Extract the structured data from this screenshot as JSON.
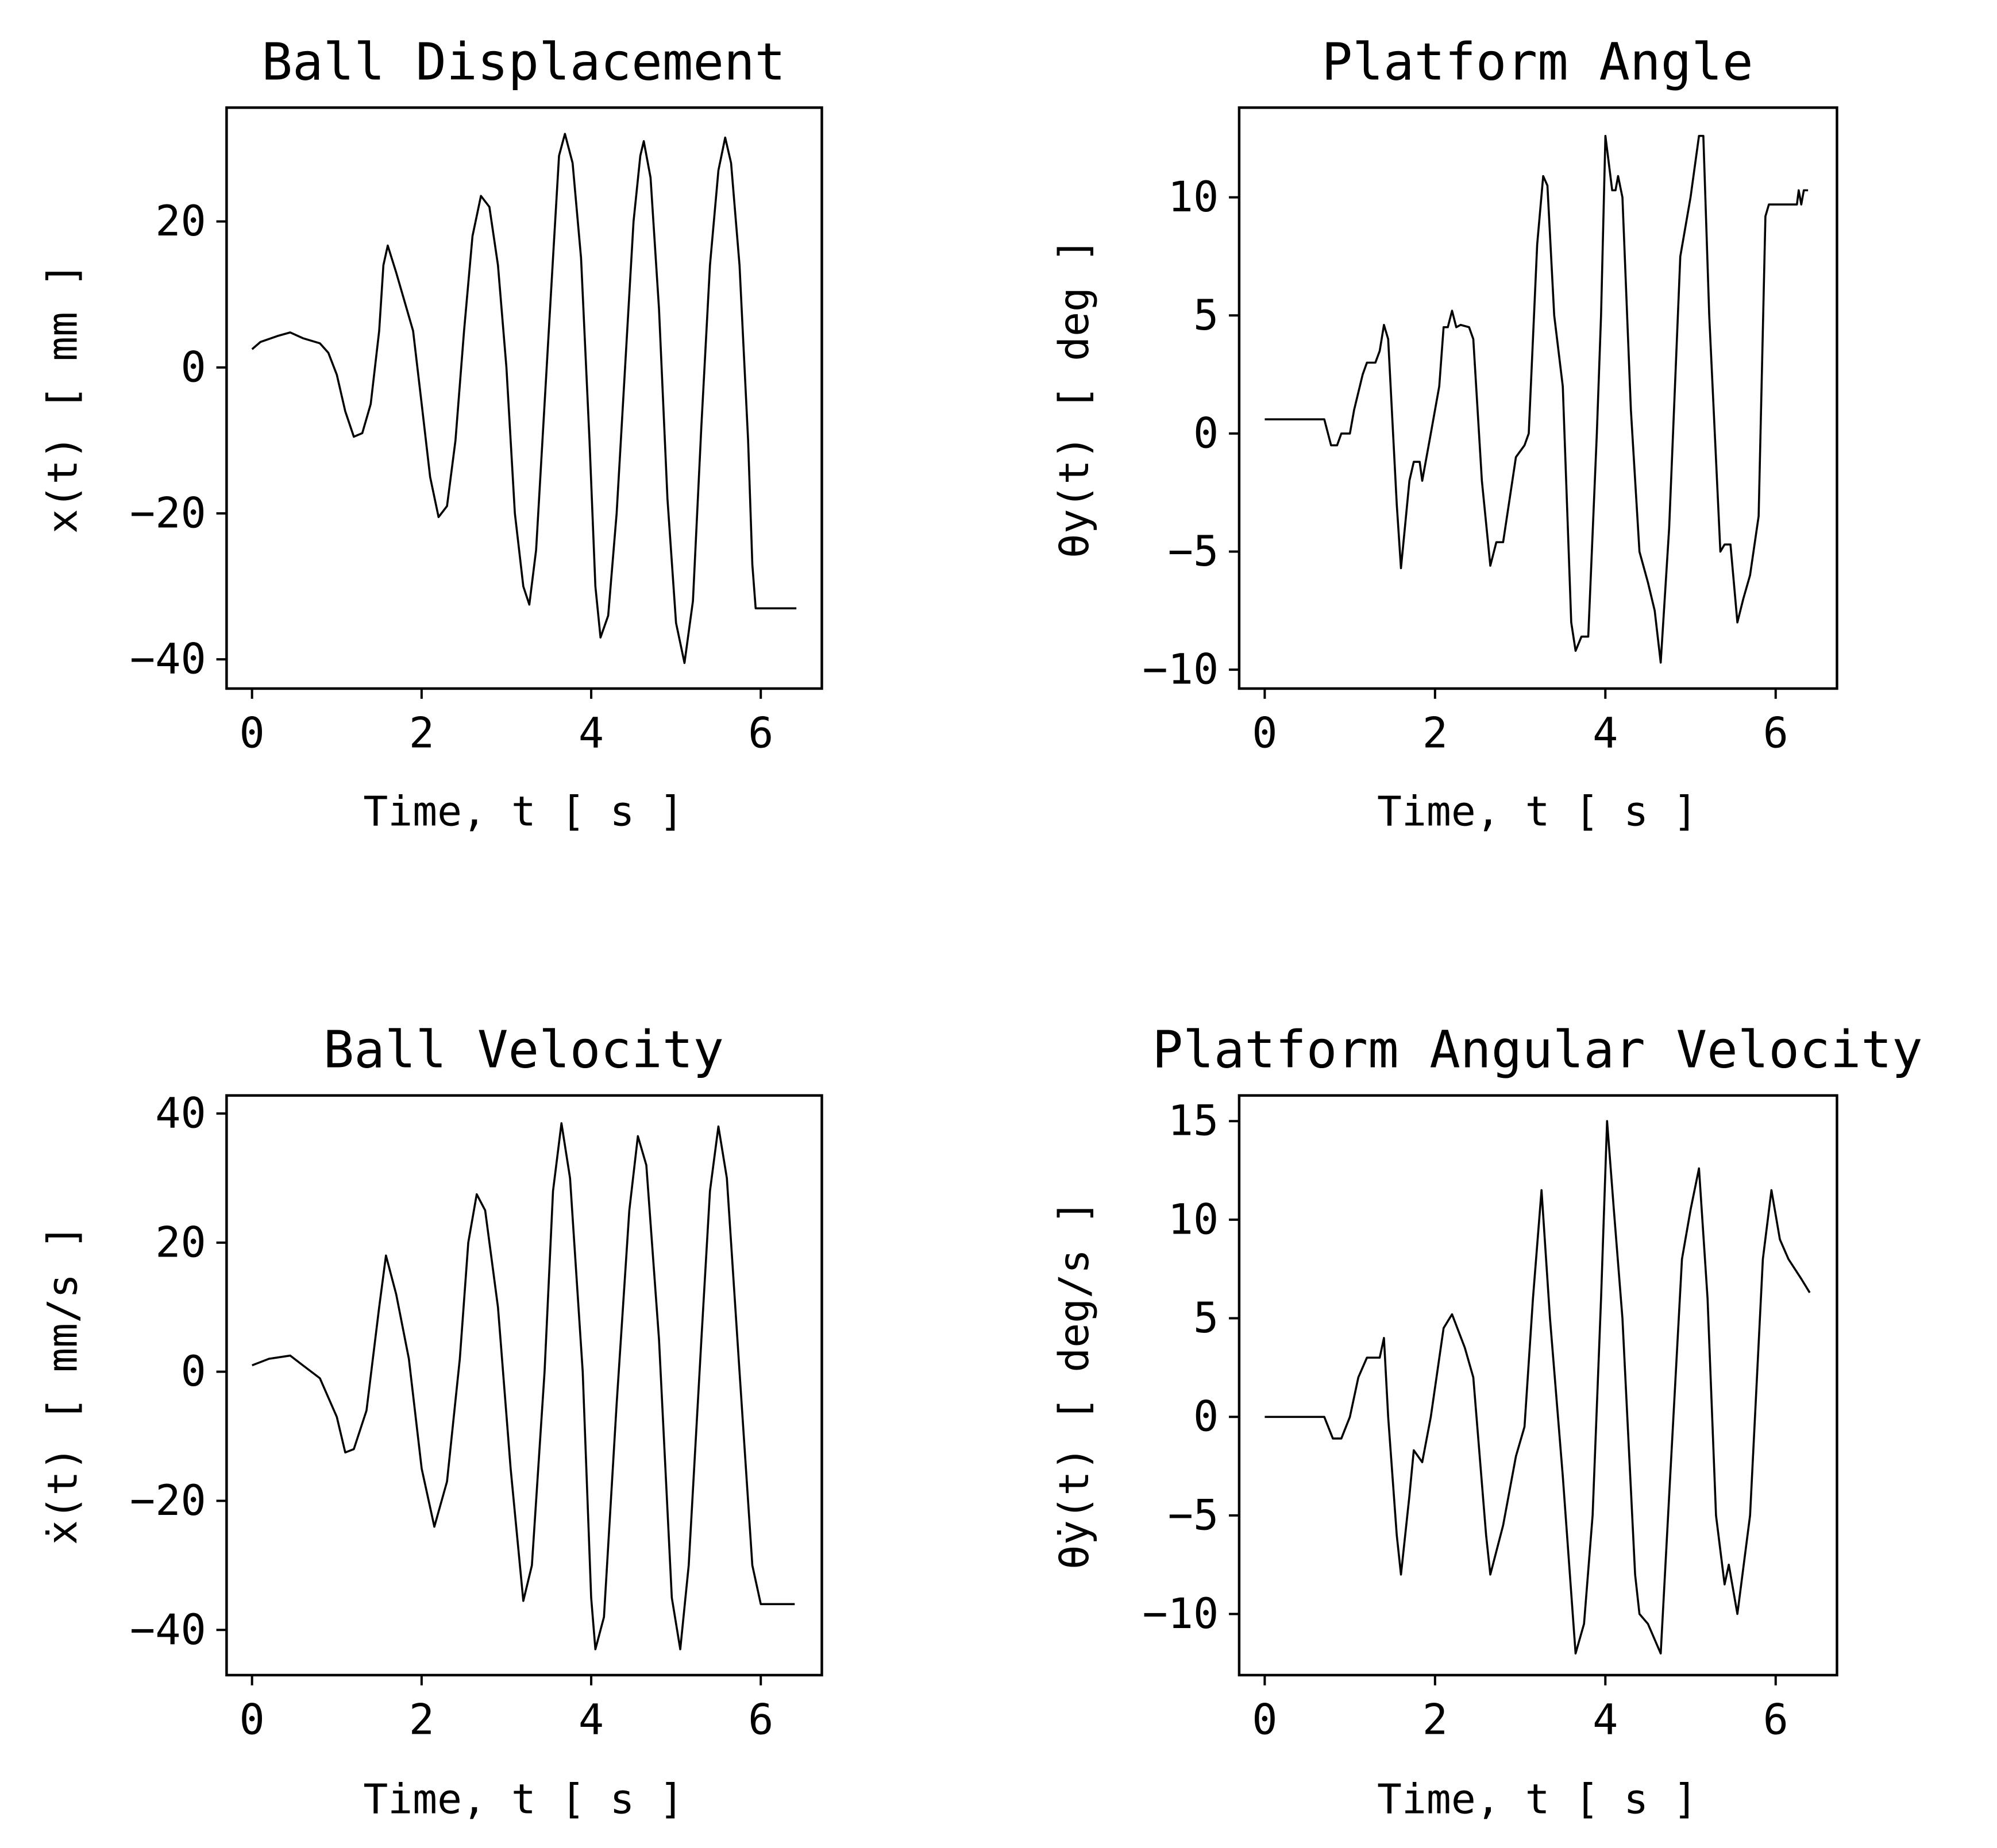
{
  "chart_data": [
    {
      "type": "line",
      "title": "Ball Displacement",
      "xlabel": "Time, t [ s ]",
      "ylabel": "x(t) [ mm ]",
      "xlim": [
        -0.3,
        6.72
      ],
      "ylim": [
        -44.0,
        35.6
      ],
      "xticks": [
        0,
        2,
        4,
        6
      ],
      "yticks": [
        -40,
        -20,
        0,
        20
      ],
      "grid": false,
      "color": "#000000",
      "x": [
        0,
        0.1,
        0.3,
        0.45,
        0.6,
        0.8,
        0.9,
        1.0,
        1.1,
        1.2,
        1.3,
        1.4,
        1.5,
        1.55,
        1.6,
        1.7,
        1.8,
        1.9,
        2.0,
        2.1,
        2.2,
        2.3,
        2.4,
        2.5,
        2.6,
        2.7,
        2.8,
        2.9,
        3.0,
        3.1,
        3.2,
        3.27,
        3.35,
        3.45,
        3.55,
        3.62,
        3.69,
        3.78,
        3.88,
        3.98,
        4.05,
        4.11,
        4.2,
        4.3,
        4.4,
        4.5,
        4.58,
        4.62,
        4.7,
        4.8,
        4.9,
        5.0,
        5.1,
        5.2,
        5.3,
        5.4,
        5.5,
        5.58,
        5.65,
        5.75,
        5.85,
        5.9,
        5.94,
        6.42
      ],
      "y": [
        2.5,
        3.5,
        4.3,
        4.8,
        4,
        3.3,
        2,
        -1,
        -6,
        -9.5,
        -9,
        -5,
        5,
        14,
        16.7,
        13,
        9,
        5,
        -5,
        -15,
        -20.5,
        -19,
        -10,
        5,
        18,
        23.5,
        22,
        14,
        0,
        -20,
        -30,
        -32.5,
        -25,
        -5,
        15,
        29,
        32,
        28,
        15,
        -10,
        -30,
        -37,
        -34,
        -20,
        0,
        20,
        29,
        31,
        26,
        8,
        -18,
        -35,
        -40.5,
        -32,
        -8,
        14,
        27,
        31.5,
        28,
        14,
        -10,
        -27,
        -33,
        -33
      ]
    },
    {
      "type": "line",
      "title": "Platform Angle",
      "xlabel": "Time, t [ s ]",
      "ylabel": "θy(t) [ deg ]",
      "xlim": [
        -0.3,
        6.72
      ],
      "ylim": [
        -10.8,
        13.8
      ],
      "xticks": [
        0,
        2,
        4,
        6
      ],
      "yticks": [
        -10,
        -5,
        0,
        5,
        10
      ],
      "grid": false,
      "color": "#000000",
      "x": [
        0,
        0.7,
        0.78,
        0.85,
        0.9,
        1.0,
        1.05,
        1.15,
        1.2,
        1.3,
        1.35,
        1.4,
        1.45,
        1.55,
        1.6,
        1.7,
        1.75,
        1.82,
        1.85,
        1.95,
        2.05,
        2.1,
        2.15,
        2.2,
        2.25,
        2.3,
        2.4,
        2.45,
        2.55,
        2.65,
        2.72,
        2.8,
        2.95,
        3.05,
        3.1,
        3.2,
        3.27,
        3.32,
        3.4,
        3.5,
        3.6,
        3.65,
        3.72,
        3.8,
        3.9,
        3.95,
        4.0,
        4.08,
        4.12,
        4.15,
        4.2,
        4.3,
        4.4,
        4.5,
        4.58,
        4.65,
        4.75,
        4.88,
        5.0,
        5.1,
        5.15,
        5.22,
        5.35,
        5.4,
        5.47,
        5.55,
        5.62,
        5.7,
        5.8,
        5.88,
        5.92,
        6.25,
        6.27,
        6.3,
        6.33,
        6.38
      ],
      "y": [
        0.6,
        0.6,
        -0.5,
        -0.5,
        0,
        0,
        1,
        2.5,
        3,
        3,
        3.5,
        4.6,
        4,
        -3,
        -5.7,
        -2,
        -1.2,
        -1.2,
        -2,
        0,
        2,
        4.5,
        4.5,
        5.2,
        4.5,
        4.6,
        4.5,
        4,
        -2,
        -5.6,
        -4.6,
        -4.6,
        -1,
        -0.5,
        0,
        8,
        10.9,
        10.5,
        5,
        2,
        -8,
        -9.2,
        -8.6,
        -8.6,
        0,
        5,
        12.6,
        10.3,
        10.3,
        10.9,
        10,
        1,
        -5,
        -6.3,
        -7.5,
        -9.7,
        -4,
        7.5,
        10,
        12.6,
        12.6,
        5,
        -5,
        -4.7,
        -4.7,
        -8,
        -7,
        -6,
        -3.5,
        9.2,
        9.7,
        9.7,
        10.3,
        9.7,
        10.3,
        10.3
      ]
    },
    {
      "type": "line",
      "title": "Ball Velocity",
      "xlabel": "Time, t [ s ]",
      "ylabel": "ẋ(t) [ mm/s ]",
      "xlim": [
        -0.3,
        6.72
      ],
      "ylim": [
        -47.0,
        42.8
      ],
      "xticks": [
        0,
        2,
        4,
        6
      ],
      "yticks": [
        -40,
        -20,
        0,
        20,
        40
      ],
      "grid": false,
      "color": "#000000",
      "x": [
        0,
        0.2,
        0.45,
        0.6,
        0.8,
        1.0,
        1.1,
        1.2,
        1.35,
        1.5,
        1.58,
        1.7,
        1.85,
        2.0,
        2.15,
        2.3,
        2.45,
        2.55,
        2.65,
        2.75,
        2.9,
        3.05,
        3.2,
        3.3,
        3.45,
        3.55,
        3.65,
        3.75,
        3.9,
        4.0,
        4.05,
        4.15,
        4.3,
        4.45,
        4.55,
        4.65,
        4.8,
        4.95,
        5.05,
        5.15,
        5.3,
        5.4,
        5.5,
        5.6,
        5.75,
        5.9,
        6.0,
        6.4
      ],
      "y": [
        1,
        2,
        2.5,
        1,
        -1,
        -7,
        -12.5,
        -12,
        -6,
        10,
        18,
        12,
        2,
        -15,
        -24,
        -17,
        2,
        20,
        27.5,
        25,
        10,
        -15,
        -35.5,
        -30,
        0,
        28,
        38.5,
        30,
        0,
        -35,
        -43,
        -38,
        -5,
        25,
        36.5,
        32,
        5,
        -35,
        -43,
        -30,
        5,
        28,
        38,
        30,
        0,
        -30,
        -36,
        -36
      ]
    },
    {
      "type": "line",
      "title": "Platform Angular Velocity",
      "xlabel": "Time, t [ s ]",
      "ylabel": "θ̇y(t) [ deg/s ]",
      "xlim": [
        -0.3,
        6.72
      ],
      "ylim": [
        -13.1,
        16.3
      ],
      "xticks": [
        0,
        2,
        4,
        6
      ],
      "yticks": [
        -10,
        -5,
        0,
        5,
        10,
        15
      ],
      "grid": false,
      "color": "#000000",
      "x": [
        0,
        0.7,
        0.8,
        0.9,
        1.0,
        1.1,
        1.2,
        1.35,
        1.4,
        1.45,
        1.55,
        1.6,
        1.7,
        1.75,
        1.85,
        1.95,
        2.1,
        2.2,
        2.35,
        2.45,
        2.6,
        2.65,
        2.8,
        2.95,
        3.05,
        3.15,
        3.25,
        3.35,
        3.5,
        3.65,
        3.75,
        3.85,
        3.95,
        4.02,
        4.1,
        4.2,
        4.35,
        4.4,
        4.5,
        4.65,
        4.75,
        4.9,
        5.0,
        5.1,
        5.2,
        5.3,
        5.4,
        5.45,
        5.55,
        5.7,
        5.85,
        5.95,
        6.05,
        6.15,
        6.3,
        6.4
      ],
      "y": [
        0,
        0,
        -1.1,
        -1.1,
        0,
        2,
        3,
        3,
        4,
        0,
        -6,
        -8,
        -4,
        -1.7,
        -2.3,
        0,
        4.5,
        5.2,
        3.5,
        2,
        -6,
        -8,
        -5.5,
        -2,
        -0.5,
        6,
        11.5,
        5,
        -3,
        -12,
        -10.5,
        -5,
        6,
        15,
        10.5,
        5,
        -8,
        -10,
        -10.5,
        -12,
        -4,
        8,
        10.5,
        12.6,
        6,
        -5,
        -8.5,
        -7.5,
        -10,
        -5,
        8,
        11.5,
        9,
        8,
        7,
        6.3
      ]
    }
  ]
}
